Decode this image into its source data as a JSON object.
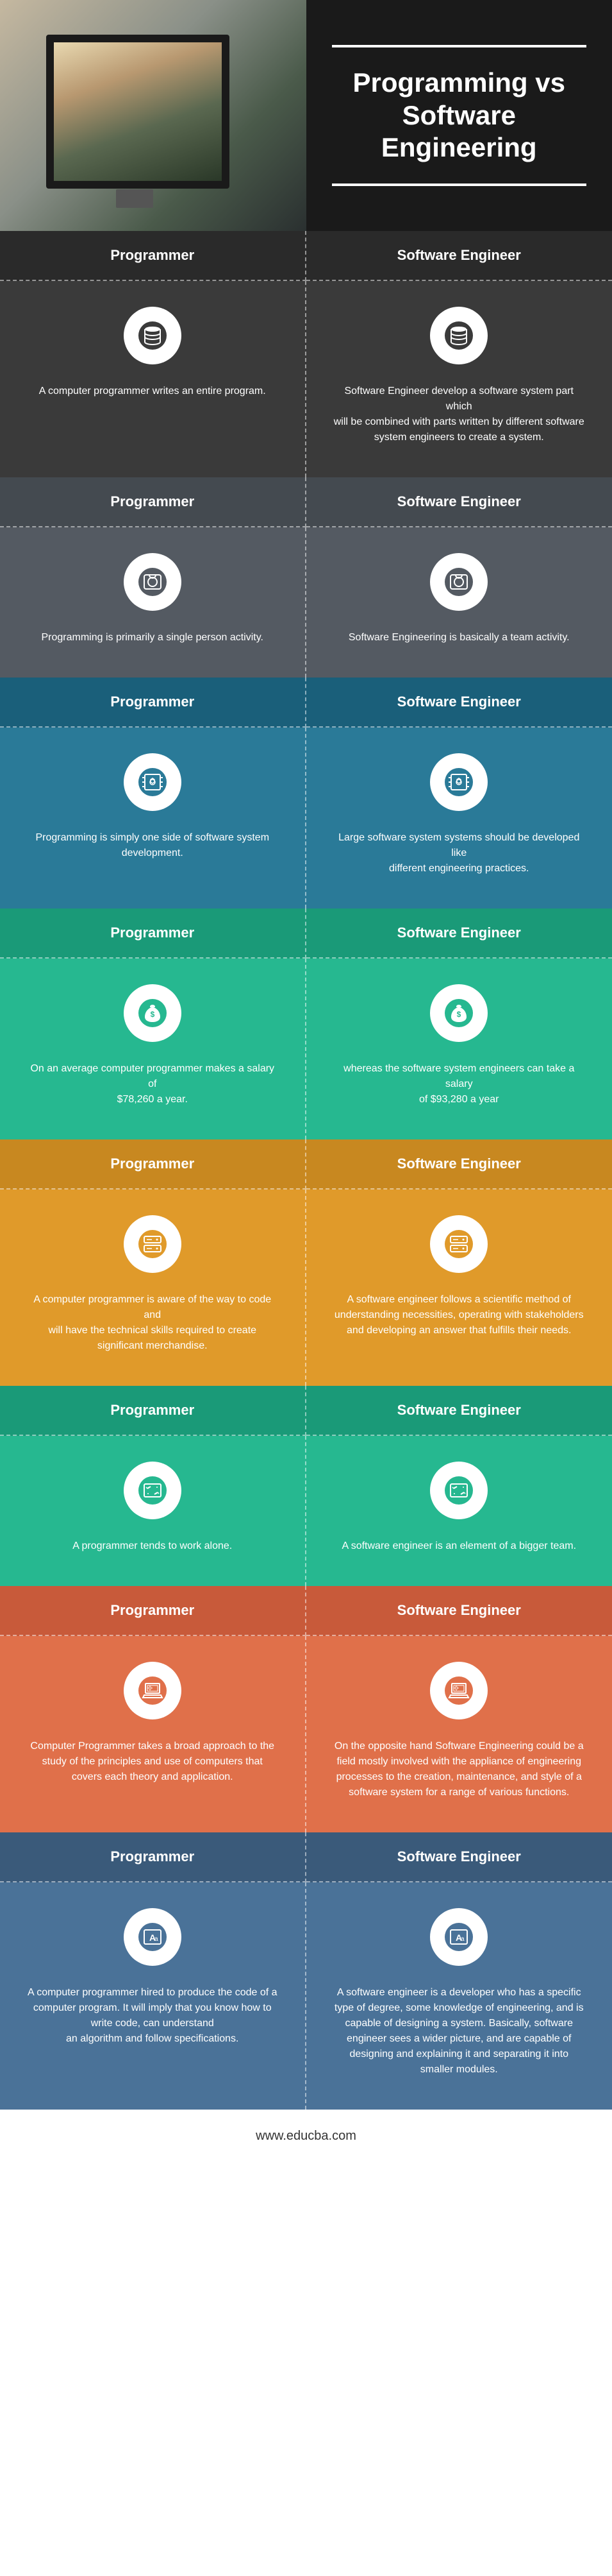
{
  "title": "Programming vs Software Engineering",
  "footer": "www.educba.com",
  "col_left": "Programmer",
  "col_right": "Software Engineer",
  "sections": [
    {
      "header_bg": "#2a2a2a",
      "body_bg": "#3a3a3a",
      "icon_fill": "#3a3a3a",
      "icon": "database",
      "left": "A computer programmer writes an entire program.",
      "right": "Software Engineer develop a software system part which\nwill be combined with parts written by different software system engineers to create a system."
    },
    {
      "header_bg": "#444a50",
      "body_bg": "#545a62",
      "icon_fill": "#545a62",
      "icon": "disk",
      "left": "Programming is primarily a single person activity.",
      "right": "Software Engineering is basically a team activity."
    },
    {
      "header_bg": "#1a5f7a",
      "body_bg": "#2a7a98",
      "icon_fill": "#2a7a98",
      "icon": "chip",
      "left": "Programming is simply one side of software system development.",
      "right": "Large software system systems should be developed like\ndifferent engineering practices."
    },
    {
      "header_bg": "#1a9a78",
      "body_bg": "#26b890",
      "icon_fill": "#26b890",
      "icon": "money",
      "left": "On an average computer programmer makes a salary of\n$78,260 a year.",
      "right": "whereas the software system engineers can take a salary\nof $93,280 a year"
    },
    {
      "header_bg": "#c88820",
      "body_bg": "#e09a2a",
      "icon_fill": "#e09a2a",
      "icon": "server",
      "left": "A computer programmer is aware of the way to code and\nwill have the technical skills required to create significant merchandise.",
      "right": "A software engineer follows a scientific method of\nunderstanding necessities, operating with stakeholders and developing an answer that fulfills their needs."
    },
    {
      "header_bg": "#1a9a78",
      "body_bg": "#26b890",
      "icon_fill": "#26b890",
      "icon": "drive",
      "left": "A programmer tends to work alone.",
      "right": "A software engineer is an element of a bigger team."
    },
    {
      "header_bg": "#c85a3a",
      "body_bg": "#e0704a",
      "icon_fill": "#e0704a",
      "icon": "laptop",
      "left": "Computer Programmer takes a broad approach to the\nstudy of the principles and use of computers that covers each theory and application.",
      "right": "On the opposite hand Software Engineering could be a\nfield mostly involved with the appliance of engineering processes to the creation, maintenance, and style of a software system for a range of various functions."
    },
    {
      "header_bg": "#3a5a7a",
      "body_bg": "#4a7298",
      "icon_fill": "#4a7298",
      "icon": "font",
      "left": "A computer programmer hired to produce the code of a\ncomputer program. It will imply that you know how to write code, can understand\nan algorithm and follow specifications.",
      "right": "A software engineer is a developer who has a specific\ntype of degree, some knowledge of engineering, and is capable of designing a system. Basically, software engineer sees a wider picture, and are capable of designing and explaining it and separating it into smaller modules."
    }
  ]
}
